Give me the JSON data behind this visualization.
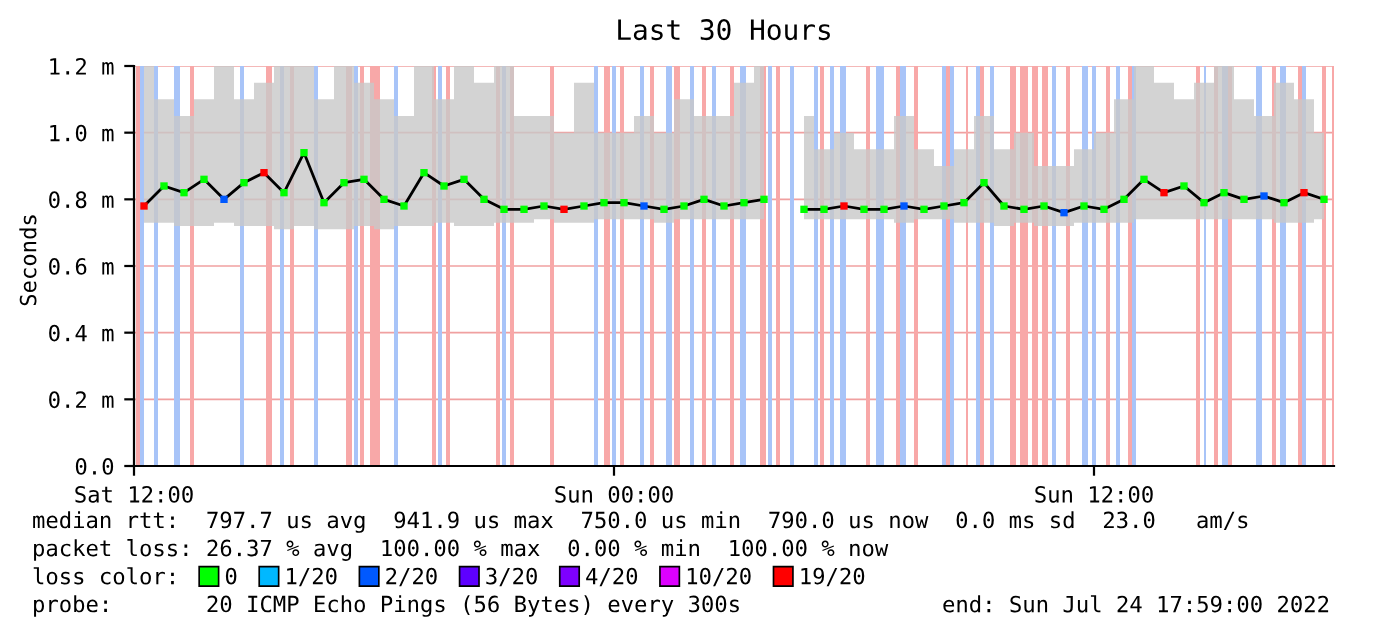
{
  "chart_data": {
    "type": "line",
    "title": "Last 30 Hours",
    "ylabel": "Seconds",
    "xlim": [
      "2022-07-23T12:00",
      "2022-07-24T18:00"
    ],
    "xticks": [
      {
        "value": "2022-07-23T12:00",
        "label": "Sat 12:00"
      },
      {
        "value": "2022-07-24T00:00",
        "label": "Sun 00:00"
      },
      {
        "value": "2022-07-24T12:00",
        "label": "Sun 12:00"
      }
    ],
    "ylim": [
      0,
      1.2
    ],
    "yticks": [
      {
        "value": 0,
        "label": "0.0"
      },
      {
        "value": 0.2,
        "label": "0.2 m"
      },
      {
        "value": 0.4,
        "label": "0.4 m"
      },
      {
        "value": 0.6,
        "label": "0.6 m"
      },
      {
        "value": 0.8,
        "label": "0.8 m"
      },
      {
        "value": 1.0,
        "label": "1.0 m"
      },
      {
        "value": 1.2,
        "label": "1.2 m"
      }
    ],
    "grid": true,
    "legend": "bottom",
    "legend_title": "loss color:",
    "x": [
      "2022-07-23T12:15",
      "2022-07-23T12:45",
      "2022-07-23T13:15",
      "2022-07-23T13:45",
      "2022-07-23T14:15",
      "2022-07-23T14:45",
      "2022-07-23T15:15",
      "2022-07-23T15:45",
      "2022-07-23T16:15",
      "2022-07-23T16:45",
      "2022-07-23T17:15",
      "2022-07-23T17:45",
      "2022-07-23T18:15",
      "2022-07-23T18:45",
      "2022-07-23T19:15",
      "2022-07-23T19:45",
      "2022-07-23T20:15",
      "2022-07-23T20:45",
      "2022-07-23T21:15",
      "2022-07-23T21:45",
      "2022-07-23T22:15",
      "2022-07-23T22:45",
      "2022-07-23T23:15",
      "2022-07-23T23:45",
      "2022-07-24T00:15",
      "2022-07-24T00:45",
      "2022-07-24T01:15",
      "2022-07-24T01:45",
      "2022-07-24T02:15",
      "2022-07-24T02:45",
      "2022-07-24T03:15",
      "2022-07-24T03:45",
      "2022-07-24T04:15",
      "2022-07-24T04:45",
      "2022-07-24T05:15",
      "2022-07-24T05:45",
      "2022-07-24T06:15",
      "2022-07-24T06:45",
      "2022-07-24T07:15",
      "2022-07-24T07:45",
      "2022-07-24T08:15",
      "2022-07-24T08:45",
      "2022-07-24T09:15",
      "2022-07-24T09:45",
      "2022-07-24T10:15",
      "2022-07-24T10:45",
      "2022-07-24T11:15",
      "2022-07-24T11:45",
      "2022-07-24T12:15",
      "2022-07-24T12:45",
      "2022-07-24T13:15",
      "2022-07-24T13:45",
      "2022-07-24T14:15",
      "2022-07-24T14:45",
      "2022-07-24T15:15",
      "2022-07-24T15:45",
      "2022-07-24T16:15",
      "2022-07-24T16:45",
      "2022-07-24T17:15",
      "2022-07-24T17:45"
    ],
    "series": [
      {
        "color": "#000000",
        "marker": "none",
        "values": [
          0.78,
          0.84,
          0.82,
          0.86,
          0.8,
          0.85,
          0.88,
          0.82,
          0.94,
          0.79,
          0.85,
          0.86,
          0.8,
          0.78,
          0.88,
          0.84,
          0.86,
          0.8,
          0.77,
          0.77,
          0.78,
          0.77,
          0.78,
          0.79,
          0.79,
          0.78,
          0.77,
          0.78,
          0.8,
          0.78,
          0.79,
          0.8,
          null,
          0.77,
          0.77,
          0.78,
          0.77,
          0.77,
          0.78,
          0.77,
          0.78,
          0.79,
          0.85,
          0.78,
          0.77,
          0.78,
          0.76,
          0.78,
          0.77,
          0.8,
          0.86,
          0.82,
          0.84,
          0.79,
          0.82,
          0.8,
          0.81,
          0.79,
          0.82,
          0.8
        ],
        "lower": [
          0.73,
          0.73,
          0.72,
          0.72,
          0.73,
          0.72,
          0.72,
          0.71,
          0.72,
          0.71,
          0.71,
          0.72,
          0.71,
          0.72,
          0.72,
          0.73,
          0.72,
          0.72,
          0.73,
          0.73,
          0.74,
          0.73,
          0.73,
          0.74,
          0.74,
          0.74,
          0.73,
          0.74,
          0.74,
          0.74,
          0.74,
          0.74,
          null,
          0.74,
          0.74,
          0.74,
          0.74,
          0.74,
          0.73,
          0.74,
          0.74,
          0.73,
          0.73,
          0.72,
          0.73,
          0.72,
          0.72,
          0.73,
          0.73,
          0.73,
          0.74,
          0.74,
          0.74,
          0.74,
          0.74,
          0.74,
          0.74,
          0.73,
          0.73,
          0.74
        ],
        "upper": [
          1.2,
          1.1,
          1.05,
          1.1,
          1.2,
          1.1,
          1.15,
          1.2,
          1.2,
          1.1,
          1.2,
          1.15,
          1.1,
          1.05,
          1.2,
          1.1,
          1.2,
          1.15,
          1.2,
          1.05,
          1.05,
          1.0,
          1.15,
          1.0,
          1.0,
          1.05,
          1.0,
          1.1,
          1.05,
          1.05,
          1.15,
          1.2,
          null,
          1.05,
          0.95,
          1.0,
          0.95,
          0.95,
          1.05,
          0.95,
          0.9,
          0.95,
          1.05,
          0.95,
          1.0,
          0.9,
          0.9,
          0.95,
          1.0,
          1.1,
          1.2,
          1.15,
          1.1,
          1.15,
          1.2,
          1.1,
          1.05,
          1.15,
          1.1,
          1.0
        ]
      },
      {
        "type": "scatter",
        "name": "0",
        "color": "#00ff00",
        "marker": "square",
        "x": [
          "2022-07-23T12:45",
          "2022-07-23T13:15",
          "2022-07-23T13:45",
          "2022-07-23T14:45",
          "2022-07-23T15:45",
          "2022-07-23T16:15",
          "2022-07-23T16:45",
          "2022-07-23T17:15",
          "2022-07-23T17:45",
          "2022-07-23T18:15",
          "2022-07-23T18:45",
          "2022-07-23T19:15",
          "2022-07-23T19:45",
          "2022-07-23T20:15",
          "2022-07-23T20:45",
          "2022-07-23T21:15",
          "2022-07-23T21:45",
          "2022-07-23T22:15",
          "2022-07-23T23:15",
          "2022-07-23T23:45",
          "2022-07-24T00:15",
          "2022-07-24T01:15",
          "2022-07-24T01:45",
          "2022-07-24T02:15",
          "2022-07-24T02:45",
          "2022-07-24T03:15",
          "2022-07-24T03:45",
          "2022-07-24T04:45",
          "2022-07-24T05:15",
          "2022-07-24T06:15",
          "2022-07-24T06:45",
          "2022-07-24T07:45",
          "2022-07-24T08:15",
          "2022-07-24T08:45",
          "2022-07-24T09:15",
          "2022-07-24T09:45",
          "2022-07-24T10:15",
          "2022-07-24T10:45",
          "2022-07-24T11:45",
          "2022-07-24T12:15",
          "2022-07-24T12:45",
          "2022-07-24T13:15",
          "2022-07-24T14:15",
          "2022-07-24T14:45",
          "2022-07-24T15:15",
          "2022-07-24T15:45",
          "2022-07-24T16:45",
          "2022-07-24T17:45"
        ],
        "values": [
          0.84,
          0.82,
          0.86,
          0.85,
          0.82,
          0.94,
          0.79,
          0.85,
          0.86,
          0.8,
          0.78,
          0.88,
          0.84,
          0.86,
          0.8,
          0.77,
          0.77,
          0.78,
          0.78,
          0.79,
          0.79,
          0.77,
          0.78,
          0.8,
          0.78,
          0.79,
          0.8,
          0.77,
          0.77,
          0.77,
          0.77,
          0.77,
          0.78,
          0.79,
          0.85,
          0.78,
          0.77,
          0.78,
          0.78,
          0.77,
          0.8,
          0.86,
          0.84,
          0.79,
          0.82,
          0.8,
          0.79,
          0.8
        ]
      },
      {
        "type": "scatter",
        "name": "1/20",
        "color": "#00b8ff",
        "marker": "square",
        "values": [
          null,
          null,
          null,
          null,
          null,
          null,
          null,
          null,
          null,
          null,
          null,
          null,
          null,
          null,
          null,
          null,
          null,
          null,
          null,
          null,
          null,
          null,
          null,
          null,
          null,
          null,
          null,
          null,
          null,
          null,
          null,
          null,
          null,
          null,
          null,
          null,
          null,
          null,
          null,
          null,
          null,
          null,
          null,
          null,
          null,
          null,
          null,
          null,
          null,
          null,
          null,
          null,
          null,
          null,
          null,
          null,
          null,
          null,
          null,
          null
        ]
      },
      {
        "type": "scatter",
        "name": "2/20",
        "color": "#0059ff",
        "marker": "square",
        "x": [
          "2022-07-23T14:15",
          "2022-07-24T00:45",
          "2022-07-24T07:15",
          "2022-07-24T11:15",
          "2022-07-24T16:15"
        ],
        "values": [
          0.8,
          0.78,
          0.78,
          0.76,
          0.81
        ]
      },
      {
        "type": "scatter",
        "name": "3/20",
        "color": "#5e00ff",
        "marker": "square",
        "values": [
          null,
          null,
          null,
          null,
          null,
          null,
          null,
          null,
          null,
          null,
          null,
          null,
          null,
          null,
          null,
          null,
          null,
          null,
          null,
          null,
          null,
          null,
          null,
          null,
          null,
          null,
          null,
          null,
          null,
          null,
          null,
          null,
          null,
          null,
          null,
          null,
          null,
          null,
          null,
          null,
          null,
          null,
          null,
          null,
          null,
          null,
          null,
          null,
          null,
          null,
          null,
          null,
          null,
          null,
          null,
          null,
          null,
          null,
          null,
          null
        ]
      },
      {
        "type": "scatter",
        "name": "4/20",
        "color": "#7e00ff",
        "marker": "square",
        "values": [
          null,
          null,
          null,
          null,
          null,
          null,
          null,
          null,
          null,
          null,
          null,
          null,
          null,
          null,
          null,
          null,
          null,
          null,
          null,
          null,
          null,
          null,
          null,
          null,
          null,
          null,
          null,
          null,
          null,
          null,
          null,
          null,
          null,
          null,
          null,
          null,
          null,
          null,
          null,
          null,
          null,
          null,
          null,
          null,
          null,
          null,
          null,
          null,
          null,
          null,
          null,
          null,
          null,
          null,
          null,
          null,
          null,
          null,
          null,
          null
        ]
      },
      {
        "type": "scatter",
        "name": "10/20",
        "color": "#dd00ff",
        "marker": "square",
        "values": [
          null,
          null,
          null,
          null,
          null,
          null,
          null,
          null,
          null,
          null,
          null,
          null,
          null,
          null,
          null,
          null,
          null,
          null,
          null,
          null,
          null,
          null,
          null,
          null,
          null,
          null,
          null,
          null,
          null,
          null,
          null,
          null,
          null,
          null,
          null,
          null,
          null,
          null,
          null,
          null,
          null,
          null,
          null,
          null,
          null,
          null,
          null,
          null,
          null,
          null,
          null,
          null,
          null,
          null,
          null,
          null,
          null,
          null,
          null,
          null
        ]
      },
      {
        "type": "scatter",
        "name": "19/20",
        "color": "#ff0000",
        "marker": "square",
        "x": [
          "2022-07-23T12:15",
          "2022-07-23T15:15",
          "2022-07-23T22:45",
          "2022-07-24T05:45",
          "2022-07-24T13:45",
          "2022-07-24T17:15"
        ],
        "values": [
          0.78,
          0.88,
          0.77,
          0.78,
          0.82,
          0.82
        ]
      }
    ],
    "bands": [
      {
        "axis": "x",
        "from": "2022-07-23T12:03",
        "to": "2022-07-23T12:09",
        "color": "#f8a8a8"
      },
      {
        "axis": "x",
        "from": "2022-07-23T12:09",
        "to": "2022-07-23T12:15",
        "color": "#a8c4f8"
      },
      {
        "axis": "x",
        "from": "2022-07-23T12:30",
        "to": "2022-07-23T12:36",
        "color": "#a8c4f8"
      },
      {
        "axis": "x",
        "from": "2022-07-23T13:00",
        "to": "2022-07-23T13:09",
        "color": "#a8c4f8"
      },
      {
        "axis": "x",
        "from": "2022-07-23T13:24",
        "to": "2022-07-23T13:30",
        "color": "#f8a8a8"
      },
      {
        "axis": "x",
        "from": "2022-07-23T14:39",
        "to": "2022-07-23T14:45",
        "color": "#a8c4f8"
      },
      {
        "axis": "x",
        "from": "2022-07-23T15:18",
        "to": "2022-07-23T15:27",
        "color": "#f8a8a8"
      },
      {
        "axis": "x",
        "from": "2022-07-23T15:39",
        "to": "2022-07-23T15:45",
        "color": "#a8c4f8"
      },
      {
        "axis": "x",
        "from": "2022-07-23T15:54",
        "to": "2022-07-23T16:00",
        "color": "#f8a8a8"
      },
      {
        "axis": "x",
        "from": "2022-07-23T16:30",
        "to": "2022-07-23T16:36",
        "color": "#a8c4f8"
      },
      {
        "axis": "x",
        "from": "2022-07-23T17:18",
        "to": "2022-07-23T17:27",
        "color": "#f8a8a8"
      },
      {
        "axis": "x",
        "from": "2022-07-23T17:30",
        "to": "2022-07-23T17:36",
        "color": "#a8c4f8"
      },
      {
        "axis": "x",
        "from": "2022-07-23T17:39",
        "to": "2022-07-23T17:45",
        "color": "#f8a8a8"
      },
      {
        "axis": "x",
        "from": "2022-07-23T17:54",
        "to": "2022-07-23T18:09",
        "color": "#f8a8a8"
      },
      {
        "axis": "x",
        "from": "2022-07-23T18:30",
        "to": "2022-07-23T18:36",
        "color": "#a8c4f8"
      },
      {
        "axis": "x",
        "from": "2022-07-23T19:27",
        "to": "2022-07-23T19:33",
        "color": "#f8a8a8"
      },
      {
        "axis": "x",
        "from": "2022-07-23T19:36",
        "to": "2022-07-23T19:42",
        "color": "#a8c4f8"
      },
      {
        "axis": "x",
        "from": "2022-07-23T19:48",
        "to": "2022-07-23T19:54",
        "color": "#f8a8a8"
      },
      {
        "axis": "x",
        "from": "2022-07-23T21:03",
        "to": "2022-07-23T21:09",
        "color": "#f8a8a8"
      },
      {
        "axis": "x",
        "from": "2022-07-23T21:12",
        "to": "2022-07-23T21:18",
        "color": "#a8c4f8"
      },
      {
        "axis": "x",
        "from": "2022-07-23T21:24",
        "to": "2022-07-23T21:30",
        "color": "#f8a8a8"
      },
      {
        "axis": "x",
        "from": "2022-07-23T22:24",
        "to": "2022-07-23T22:30",
        "color": "#f8a8a8"
      },
      {
        "axis": "x",
        "from": "2022-07-23T23:30",
        "to": "2022-07-23T23:36",
        "color": "#a8c4f8"
      },
      {
        "axis": "x",
        "from": "2022-07-23T23:45",
        "to": "2022-07-23T23:54",
        "color": "#f8a8a8"
      },
      {
        "axis": "x",
        "from": "2022-07-23T23:57",
        "to": "2022-07-24T00:03",
        "color": "#a8c4f8"
      },
      {
        "axis": "x",
        "from": "2022-07-24T00:09",
        "to": "2022-07-24T00:15",
        "color": "#f8a8a8"
      },
      {
        "axis": "x",
        "from": "2022-07-24T00:39",
        "to": "2022-07-24T00:45",
        "color": "#a8c4f8"
      },
      {
        "axis": "x",
        "from": "2022-07-24T00:54",
        "to": "2022-07-24T01:00",
        "color": "#f8a8a8"
      },
      {
        "axis": "x",
        "from": "2022-07-24T01:18",
        "to": "2022-07-24T01:27",
        "color": "#a8c4f8"
      },
      {
        "axis": "x",
        "from": "2022-07-24T01:30",
        "to": "2022-07-24T01:39",
        "color": "#f8a8a8"
      },
      {
        "axis": "x",
        "from": "2022-07-24T01:54",
        "to": "2022-07-24T02:00",
        "color": "#a8c4f8"
      },
      {
        "axis": "x",
        "from": "2022-07-24T02:12",
        "to": "2022-07-24T02:18",
        "color": "#f8a8a8"
      },
      {
        "axis": "x",
        "from": "2022-07-24T02:27",
        "to": "2022-07-24T02:33",
        "color": "#a8c4f8"
      },
      {
        "axis": "x",
        "from": "2022-07-24T02:54",
        "to": "2022-07-24T03:00",
        "color": "#f8a8a8"
      },
      {
        "axis": "x",
        "from": "2022-07-24T03:09",
        "to": "2022-07-24T03:18",
        "color": "#a8c4f8"
      },
      {
        "axis": "x",
        "from": "2022-07-24T03:39",
        "to": "2022-07-24T03:48",
        "color": "#f8a8a8"
      },
      {
        "axis": "x",
        "from": "2022-07-24T03:51",
        "to": "2022-07-24T03:57",
        "color": "#a8c4f8"
      },
      {
        "axis": "x",
        "from": "2022-07-24T04:03",
        "to": "2022-07-24T04:09",
        "color": "#f8a8a8"
      },
      {
        "axis": "x",
        "from": "2022-07-24T04:24",
        "to": "2022-07-24T04:30",
        "color": "#a8c4f8"
      },
      {
        "axis": "x",
        "from": "2022-07-24T05:00",
        "to": "2022-07-24T05:06",
        "color": "#a8c4f8"
      },
      {
        "axis": "x",
        "from": "2022-07-24T05:09",
        "to": "2022-07-24T05:15",
        "color": "#f8a8a8"
      },
      {
        "axis": "x",
        "from": "2022-07-24T05:24",
        "to": "2022-07-24T05:30",
        "color": "#a8c4f8"
      },
      {
        "axis": "x",
        "from": "2022-07-24T05:39",
        "to": "2022-07-24T05:48",
        "color": "#a8c4f8"
      },
      {
        "axis": "x",
        "from": "2022-07-24T06:18",
        "to": "2022-07-24T06:24",
        "color": "#f8a8a8"
      },
      {
        "axis": "x",
        "from": "2022-07-24T06:33",
        "to": "2022-07-24T06:45",
        "color": "#a8c4f8"
      },
      {
        "axis": "x",
        "from": "2022-07-24T07:03",
        "to": "2022-07-24T07:09",
        "color": "#f8a8a8"
      },
      {
        "axis": "x",
        "from": "2022-07-24T07:09",
        "to": "2022-07-24T07:18",
        "color": "#a8c4f8"
      },
      {
        "axis": "x",
        "from": "2022-07-24T07:30",
        "to": "2022-07-24T07:36",
        "color": "#f8a8a8"
      },
      {
        "axis": "x",
        "from": "2022-07-24T08:12",
        "to": "2022-07-24T08:18",
        "color": "#a8c4f8"
      },
      {
        "axis": "x",
        "from": "2022-07-24T08:18",
        "to": "2022-07-24T08:24",
        "color": "#f8a8a8"
      },
      {
        "axis": "x",
        "from": "2022-07-24T08:24",
        "to": "2022-07-24T08:30",
        "color": "#a8c4f8"
      },
      {
        "axis": "x",
        "from": "2022-07-24T08:48",
        "to": "2022-07-24T08:51",
        "color": "#f8a8a8"
      },
      {
        "axis": "x",
        "from": "2022-07-24T09:03",
        "to": "2022-07-24T09:09",
        "color": "#a8c4f8"
      },
      {
        "axis": "x",
        "from": "2022-07-24T09:09",
        "to": "2022-07-24T09:15",
        "color": "#f8a8a8"
      },
      {
        "axis": "x",
        "from": "2022-07-24T09:24",
        "to": "2022-07-24T09:30",
        "color": "#a8c4f8"
      },
      {
        "axis": "x",
        "from": "2022-07-24T09:54",
        "to": "2022-07-24T10:03",
        "color": "#f8a8a8"
      },
      {
        "axis": "x",
        "from": "2022-07-24T10:09",
        "to": "2022-07-24T10:21",
        "color": "#f8a8a8"
      },
      {
        "axis": "x",
        "from": "2022-07-24T10:27",
        "to": "2022-07-24T10:36",
        "color": "#f8a8a8"
      },
      {
        "axis": "x",
        "from": "2022-07-24T10:42",
        "to": "2022-07-24T10:51",
        "color": "#f8a8a8"
      },
      {
        "axis": "x",
        "from": "2022-07-24T10:57",
        "to": "2022-07-24T11:03",
        "color": "#a8c4f8"
      },
      {
        "axis": "x",
        "from": "2022-07-24T11:18",
        "to": "2022-07-24T11:24",
        "color": "#f8a8a8"
      },
      {
        "axis": "x",
        "from": "2022-07-24T11:42",
        "to": "2022-07-24T11:51",
        "color": "#a8c4f8"
      },
      {
        "axis": "x",
        "from": "2022-07-24T11:57",
        "to": "2022-07-24T12:03",
        "color": "#a8c4f8"
      },
      {
        "axis": "x",
        "from": "2022-07-24T12:18",
        "to": "2022-07-24T12:24",
        "color": "#f8a8a8"
      },
      {
        "axis": "x",
        "from": "2022-07-24T12:33",
        "to": "2022-07-24T12:39",
        "color": "#a8c4f8"
      },
      {
        "axis": "x",
        "from": "2022-07-24T12:51",
        "to": "2022-07-24T12:57",
        "color": "#f8a8a8"
      },
      {
        "axis": "x",
        "from": "2022-07-24T12:57",
        "to": "2022-07-24T13:03",
        "color": "#a8c4f8"
      },
      {
        "axis": "x",
        "from": "2022-07-24T14:33",
        "to": "2022-07-24T14:39",
        "color": "#f8a8a8"
      },
      {
        "axis": "x",
        "from": "2022-07-24T14:45",
        "to": "2022-07-24T14:48",
        "color": "#a8c4f8"
      },
      {
        "axis": "x",
        "from": "2022-07-24T15:00",
        "to": "2022-07-24T15:06",
        "color": "#f8a8a8"
      },
      {
        "axis": "x",
        "from": "2022-07-24T15:12",
        "to": "2022-07-24T15:21",
        "color": "#a8c4f8"
      },
      {
        "axis": "x",
        "from": "2022-07-24T15:21",
        "to": "2022-07-24T15:27",
        "color": "#f8a8a8"
      },
      {
        "axis": "x",
        "from": "2022-07-24T16:03",
        "to": "2022-07-24T16:12",
        "color": "#a8c4f8"
      },
      {
        "axis": "x",
        "from": "2022-07-24T16:27",
        "to": "2022-07-24T16:33",
        "color": "#f8a8a8"
      },
      {
        "axis": "x",
        "from": "2022-07-24T16:39",
        "to": "2022-07-24T16:48",
        "color": "#a8c4f8"
      },
      {
        "axis": "x",
        "from": "2022-07-24T17:06",
        "to": "2022-07-24T17:12",
        "color": "#f8a8a8"
      },
      {
        "axis": "x",
        "from": "2022-07-24T17:12",
        "to": "2022-07-24T17:18",
        "color": "#a8c4f8"
      },
      {
        "axis": "x",
        "from": "2022-07-24T17:42",
        "to": "2022-07-24T17:48",
        "color": "#f8a8a8"
      },
      {
        "axis": "x",
        "from": "2022-07-24T17:57",
        "to": "2022-07-24T18:00",
        "color": "#f8a8a8"
      }
    ],
    "annotations": [
      "median rtt:  797.7 us avg  941.9 us max  750.0 us min  790.0 us now  0.0 ms sd  23.0   am/s",
      "packet loss: 26.37 % avg  100.00 % max  0.00 % min  100.00 % now",
      "probe:       20 ICMP Echo Pings (56 Bytes) every 300s",
      "end: Sun Jul 24 17:59:00 2022"
    ]
  }
}
